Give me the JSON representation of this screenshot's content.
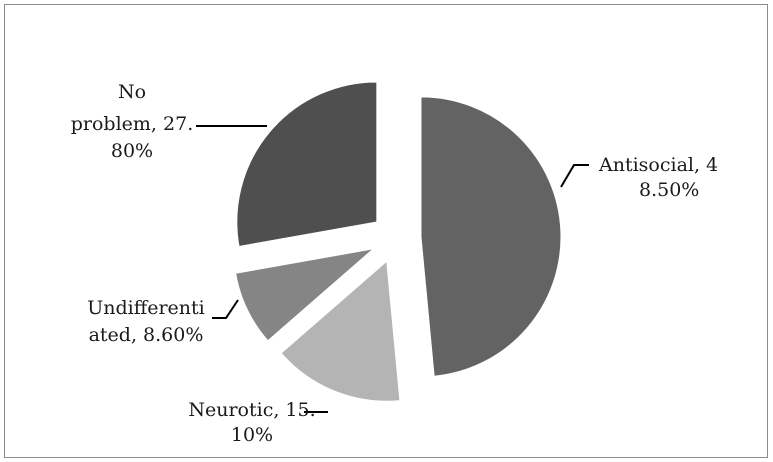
{
  "chart_data": {
    "type": "pie",
    "title": "",
    "slices": [
      {
        "name": "Antisocial",
        "value": 48.5,
        "color": "#636363",
        "label_lines": [
          "Antisocial, 4",
          "8.50%"
        ]
      },
      {
        "name": "Neurotic",
        "value": 15.1,
        "color": "#b4b4b4",
        "label_lines": [
          "Neurotic, 15.",
          "10%"
        ]
      },
      {
        "name": "Undifferentiated",
        "value": 8.6,
        "color": "#858585",
        "label_lines": [
          "Undifferenti",
          "ated, 8.60%"
        ]
      },
      {
        "name": "No problem",
        "value": 27.8,
        "color": "#4f4f4f",
        "label_lines": [
          "No",
          "problem, 27.",
          "80%"
        ]
      }
    ],
    "exploded": true,
    "legend": "none"
  }
}
